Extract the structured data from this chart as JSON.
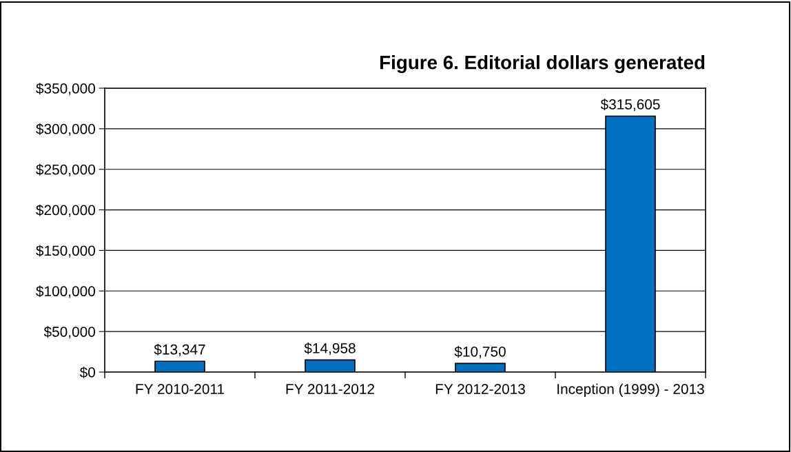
{
  "chart_data": {
    "type": "bar",
    "title": "Figure 6. Editorial dollars generated",
    "categories": [
      "FY 2010-2011",
      "FY 2011-2012",
      "FY 2012-2013",
      "Inception (1999) - 2013"
    ],
    "values": [
      13347,
      14958,
      10750,
      315605
    ],
    "value_labels": [
      "$13,347",
      "$14,958",
      "$10,750",
      "$315,605"
    ],
    "color": "#0070c0",
    "ylim": [
      0,
      350000
    ],
    "yticks": [
      {
        "value": 0,
        "label": "$0"
      },
      {
        "value": 50000,
        "label": "$50,000"
      },
      {
        "value": 100000,
        "label": "$100,000"
      },
      {
        "value": 150000,
        "label": "$150,000"
      },
      {
        "value": 200000,
        "label": "$200,000"
      },
      {
        "value": 250000,
        "label": "$250,000"
      },
      {
        "value": 300000,
        "label": "$300,000"
      },
      {
        "value": 350000,
        "label": "$350,000"
      }
    ],
    "grid": "y"
  }
}
